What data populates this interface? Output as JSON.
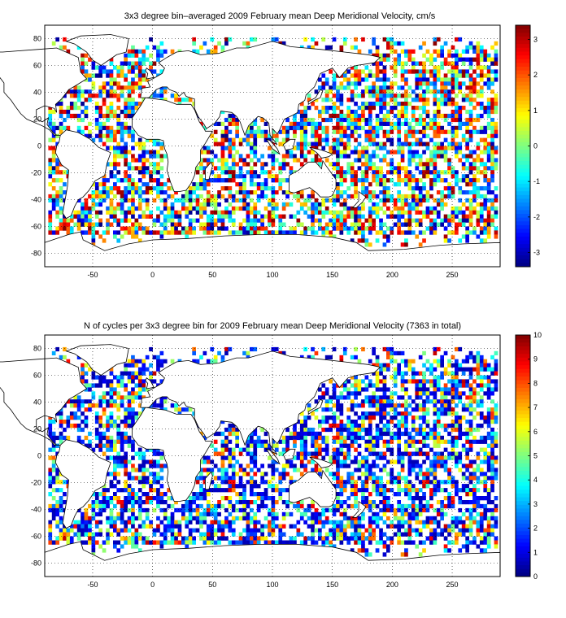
{
  "maps": [
    {
      "title": "3x3 degree bin–averaged 2009 February mean Deep Meridional Velocity, cm/s",
      "xticks": [
        -50,
        0,
        50,
        100,
        150,
        200,
        250
      ],
      "yticks": [
        80,
        60,
        40,
        20,
        0,
        -20,
        -40,
        -60,
        -80
      ],
      "xlim": [
        -90,
        290
      ],
      "ylim": [
        -90,
        90
      ],
      "colorbar": {
        "min": -3.4,
        "max": 3.4,
        "ticks": [
          3,
          2,
          1,
          0,
          -1,
          -2,
          -3
        ],
        "colormap": "jet"
      },
      "grid": "dotted"
    },
    {
      "title": "N of cycles per 3x3 degree bin for 2009 February mean Deep Meridional Velocity (7363 in total)",
      "xticks": [
        -50,
        0,
        50,
        100,
        150,
        200,
        250
      ],
      "yticks": [
        80,
        60,
        40,
        20,
        0,
        -20,
        -40,
        -60,
        -80
      ],
      "xlim": [
        -90,
        290
      ],
      "ylim": [
        -90,
        90
      ],
      "colorbar": {
        "min": 0,
        "max": 10,
        "ticks": [
          10,
          9,
          8,
          7,
          6,
          5,
          4,
          3,
          2,
          1,
          0
        ],
        "colormap": "jet"
      },
      "grid": "dotted"
    }
  ]
}
